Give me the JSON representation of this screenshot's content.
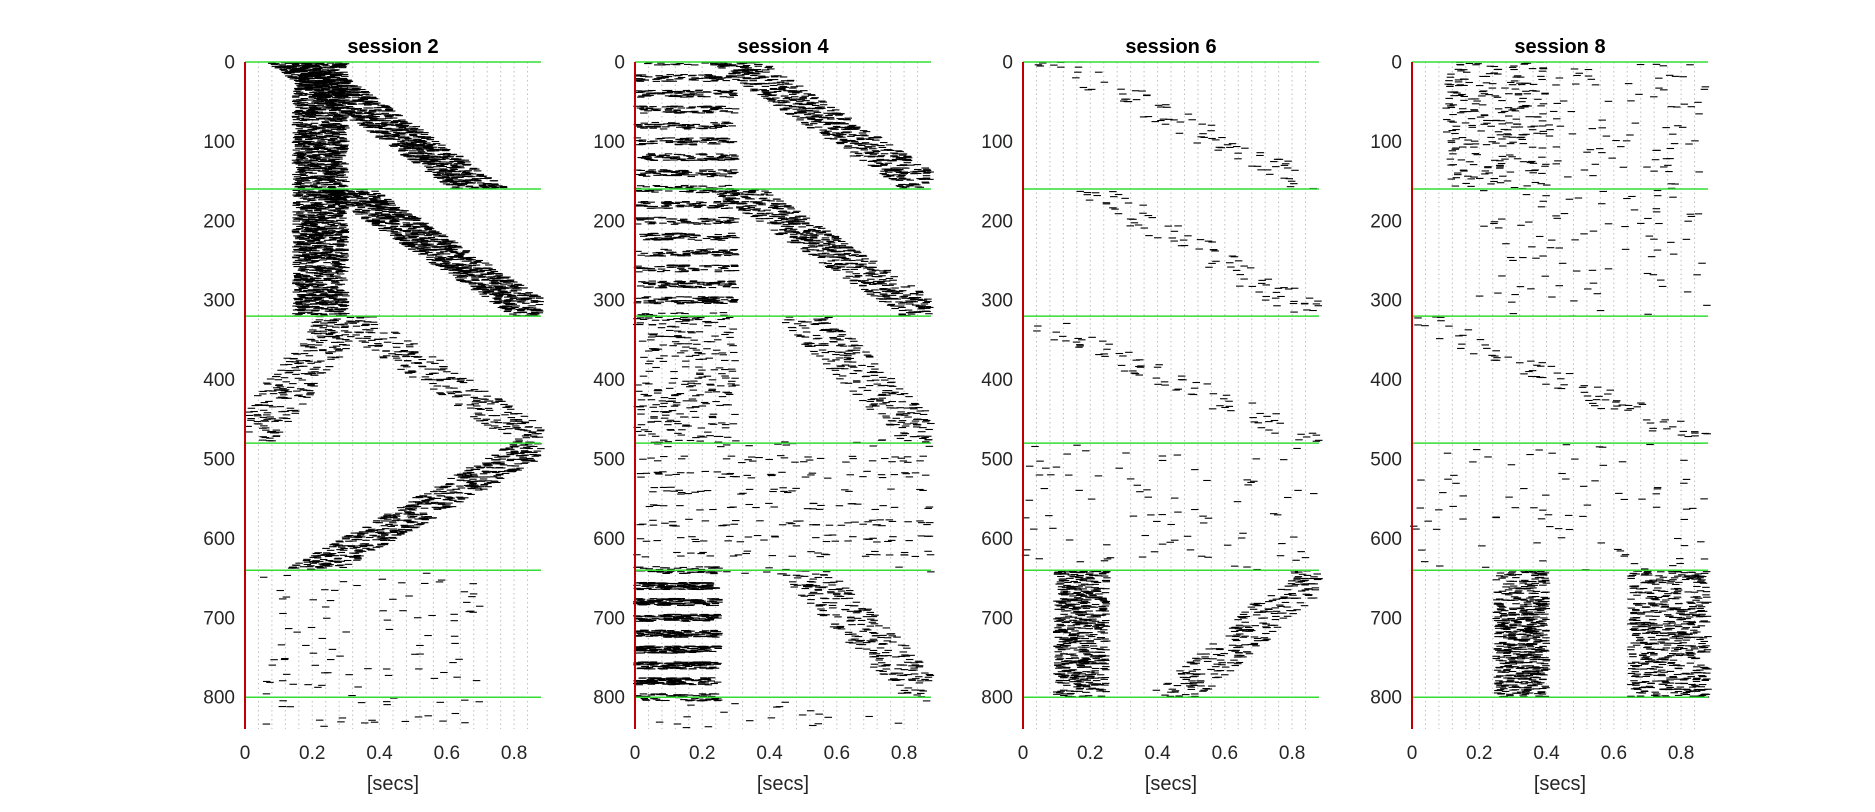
{
  "chart_data": [
    {
      "type": "scatter",
      "title": "session 2",
      "xlabel": "[secs]",
      "ylabel": "",
      "xlim": [
        0,
        0.88
      ],
      "ylim": [
        0,
        840
      ],
      "y_reversed": true,
      "xticks": [
        "0",
        "0.2",
        "0.4",
        "0.6",
        "0.8"
      ],
      "yticks": [
        "0",
        "100",
        "200",
        "300",
        "400",
        "500",
        "600",
        "700",
        "800"
      ],
      "grid_x": "dotted vertical lines every 0.04 s",
      "block_boundaries": [
        0,
        160,
        320,
        480,
        640,
        800
      ],
      "onset_line_x": 0,
      "spike_clusters": [
        {
          "trials": [
            0,
            160
          ],
          "x_start": 0.15,
          "x_end": 0.7,
          "density": "very dense",
          "pattern": "diagonal"
        },
        {
          "trials": [
            0,
            160
          ],
          "x_start": 0.15,
          "x_end": 0.3,
          "density": "very dense",
          "pattern": "vertical band"
        },
        {
          "trials": [
            160,
            320
          ],
          "x_start": 0.15,
          "x_end": 0.3,
          "density": "very dense",
          "pattern": "vertical band"
        },
        {
          "trials": [
            160,
            320
          ],
          "x_start": 0.3,
          "x_end": 0.88,
          "density": "very dense",
          "pattern": "diagonal"
        },
        {
          "trials": [
            320,
            480
          ],
          "x_start": 0.0,
          "x_end": 0.3,
          "density": "medium",
          "pattern": "reverse diagonal"
        },
        {
          "trials": [
            320,
            480
          ],
          "x_start": 0.3,
          "x_end": 0.88,
          "density": "medium",
          "pattern": "diagonal"
        },
        {
          "trials": [
            480,
            640
          ],
          "x_start": 0.2,
          "x_end": 0.88,
          "density": "dense",
          "pattern": "reverse diagonal"
        },
        {
          "trials": [
            640,
            840
          ],
          "x_start": 0.05,
          "x_end": 0.7,
          "density": "sparse",
          "pattern": "scattered"
        }
      ]
    },
    {
      "type": "scatter",
      "title": "session 4",
      "xlabel": "[secs]",
      "ylabel": "",
      "xlim": [
        0,
        0.88
      ],
      "ylim": [
        0,
        840
      ],
      "y_reversed": true,
      "xticks": [
        "0",
        "0.2",
        "0.4",
        "0.6",
        "0.8"
      ],
      "yticks": [
        "0",
        "100",
        "200",
        "300",
        "400",
        "500",
        "600",
        "700",
        "800"
      ],
      "grid_x": "dotted vertical lines every 0.04 s",
      "block_boundaries": [
        0,
        160,
        320,
        480,
        640,
        800
      ],
      "onset_line_x": 0,
      "spike_clusters": [
        {
          "trials": [
            0,
            160
          ],
          "x_start": 0.0,
          "x_end": 0.3,
          "density": "dense",
          "pattern": "horizontal bands"
        },
        {
          "trials": [
            0,
            160
          ],
          "x_start": 0.3,
          "x_end": 0.88,
          "density": "dense",
          "pattern": "diagonal"
        },
        {
          "trials": [
            160,
            320
          ],
          "x_start": 0.0,
          "x_end": 0.3,
          "density": "dense",
          "pattern": "horizontal bands"
        },
        {
          "trials": [
            160,
            320
          ],
          "x_start": 0.3,
          "x_end": 0.88,
          "density": "dense",
          "pattern": "diagonal"
        },
        {
          "trials": [
            320,
            480
          ],
          "x_start": 0.0,
          "x_end": 0.3,
          "density": "medium",
          "pattern": "scattered"
        },
        {
          "trials": [
            320,
            480
          ],
          "x_start": 0.5,
          "x_end": 0.88,
          "density": "medium",
          "pattern": "diagonal"
        },
        {
          "trials": [
            480,
            640
          ],
          "x_start": 0.0,
          "x_end": 0.88,
          "density": "medium",
          "pattern": "horizontal bands"
        },
        {
          "trials": [
            640,
            800
          ],
          "x_start": 0.0,
          "x_end": 0.25,
          "density": "very dense",
          "pattern": "horizontal bands"
        },
        {
          "trials": [
            640,
            800
          ],
          "x_start": 0.5,
          "x_end": 0.88,
          "density": "medium",
          "pattern": "diagonal"
        },
        {
          "trials": [
            800,
            840
          ],
          "x_start": 0.0,
          "x_end": 0.88,
          "density": "sparse",
          "pattern": "scattered"
        }
      ]
    },
    {
      "type": "scatter",
      "title": "session 6",
      "xlabel": "[secs]",
      "ylabel": "",
      "xlim": [
        0,
        0.88
      ],
      "ylim": [
        0,
        840
      ],
      "y_reversed": true,
      "xticks": [
        "0",
        "0.2",
        "0.4",
        "0.6",
        "0.8"
      ],
      "yticks": [
        "0",
        "100",
        "200",
        "300",
        "400",
        "500",
        "600",
        "700",
        "800"
      ],
      "grid_x": "dotted vertical lines every 0.04 s",
      "block_boundaries": [
        0,
        160,
        320,
        480,
        640,
        800
      ],
      "onset_line_x": 0,
      "spike_clusters": [
        {
          "trials": [
            0,
            160
          ],
          "x_start": 0.1,
          "x_end": 0.88,
          "density": "sparse",
          "pattern": "diagonal"
        },
        {
          "trials": [
            160,
            320
          ],
          "x_start": 0.2,
          "x_end": 0.88,
          "density": "sparse",
          "pattern": "diagonal"
        },
        {
          "trials": [
            320,
            480
          ],
          "x_start": 0.0,
          "x_end": 0.88,
          "density": "sparse",
          "pattern": "diagonal"
        },
        {
          "trials": [
            480,
            640
          ],
          "x_start": 0.0,
          "x_end": 0.88,
          "density": "sparse",
          "pattern": "scattered"
        },
        {
          "trials": [
            640,
            800
          ],
          "x_start": 0.1,
          "x_end": 0.25,
          "density": "dense",
          "pattern": "vertical band"
        },
        {
          "trials": [
            640,
            800
          ],
          "x_start": 0.45,
          "x_end": 0.88,
          "density": "medium",
          "pattern": "reverse diagonal"
        }
      ]
    },
    {
      "type": "scatter",
      "title": "session 8",
      "xlabel": "[secs]",
      "ylabel": "",
      "xlim": [
        0,
        0.88
      ],
      "ylim": [
        0,
        840
      ],
      "y_reversed": true,
      "xticks": [
        "0",
        "0.2",
        "0.4",
        "0.6",
        "0.8"
      ],
      "yticks": [
        "0",
        "100",
        "200",
        "300",
        "400",
        "500",
        "600",
        "700",
        "800"
      ],
      "grid_x": "dotted vertical lines every 0.04 s",
      "block_boundaries": [
        0,
        160,
        320,
        480,
        640,
        800
      ],
      "onset_line_x": 0,
      "spike_clusters": [
        {
          "trials": [
            0,
            160
          ],
          "x_start": 0.1,
          "x_end": 0.4,
          "density": "medium",
          "pattern": "vertical band"
        },
        {
          "trials": [
            0,
            160
          ],
          "x_start": 0.4,
          "x_end": 0.88,
          "density": "sparse",
          "pattern": "scattered"
        },
        {
          "trials": [
            160,
            320
          ],
          "x_start": 0.2,
          "x_end": 0.88,
          "density": "sparse",
          "pattern": "scattered"
        },
        {
          "trials": [
            320,
            480
          ],
          "x_start": 0.0,
          "x_end": 0.88,
          "density": "sparse",
          "pattern": "diagonal"
        },
        {
          "trials": [
            480,
            640
          ],
          "x_start": 0.0,
          "x_end": 0.88,
          "density": "sparse",
          "pattern": "scattered"
        },
        {
          "trials": [
            640,
            800
          ],
          "x_start": 0.25,
          "x_end": 0.4,
          "density": "dense",
          "pattern": "vertical band"
        },
        {
          "trials": [
            640,
            800
          ],
          "x_start": 0.65,
          "x_end": 0.88,
          "density": "dense",
          "pattern": "vertical band"
        }
      ]
    }
  ],
  "colors": {
    "spike": "#000000",
    "block_line": "#33dd33",
    "onset_line": "#c00000",
    "grid": "#bfbfbf",
    "axis_text": "#262626"
  }
}
